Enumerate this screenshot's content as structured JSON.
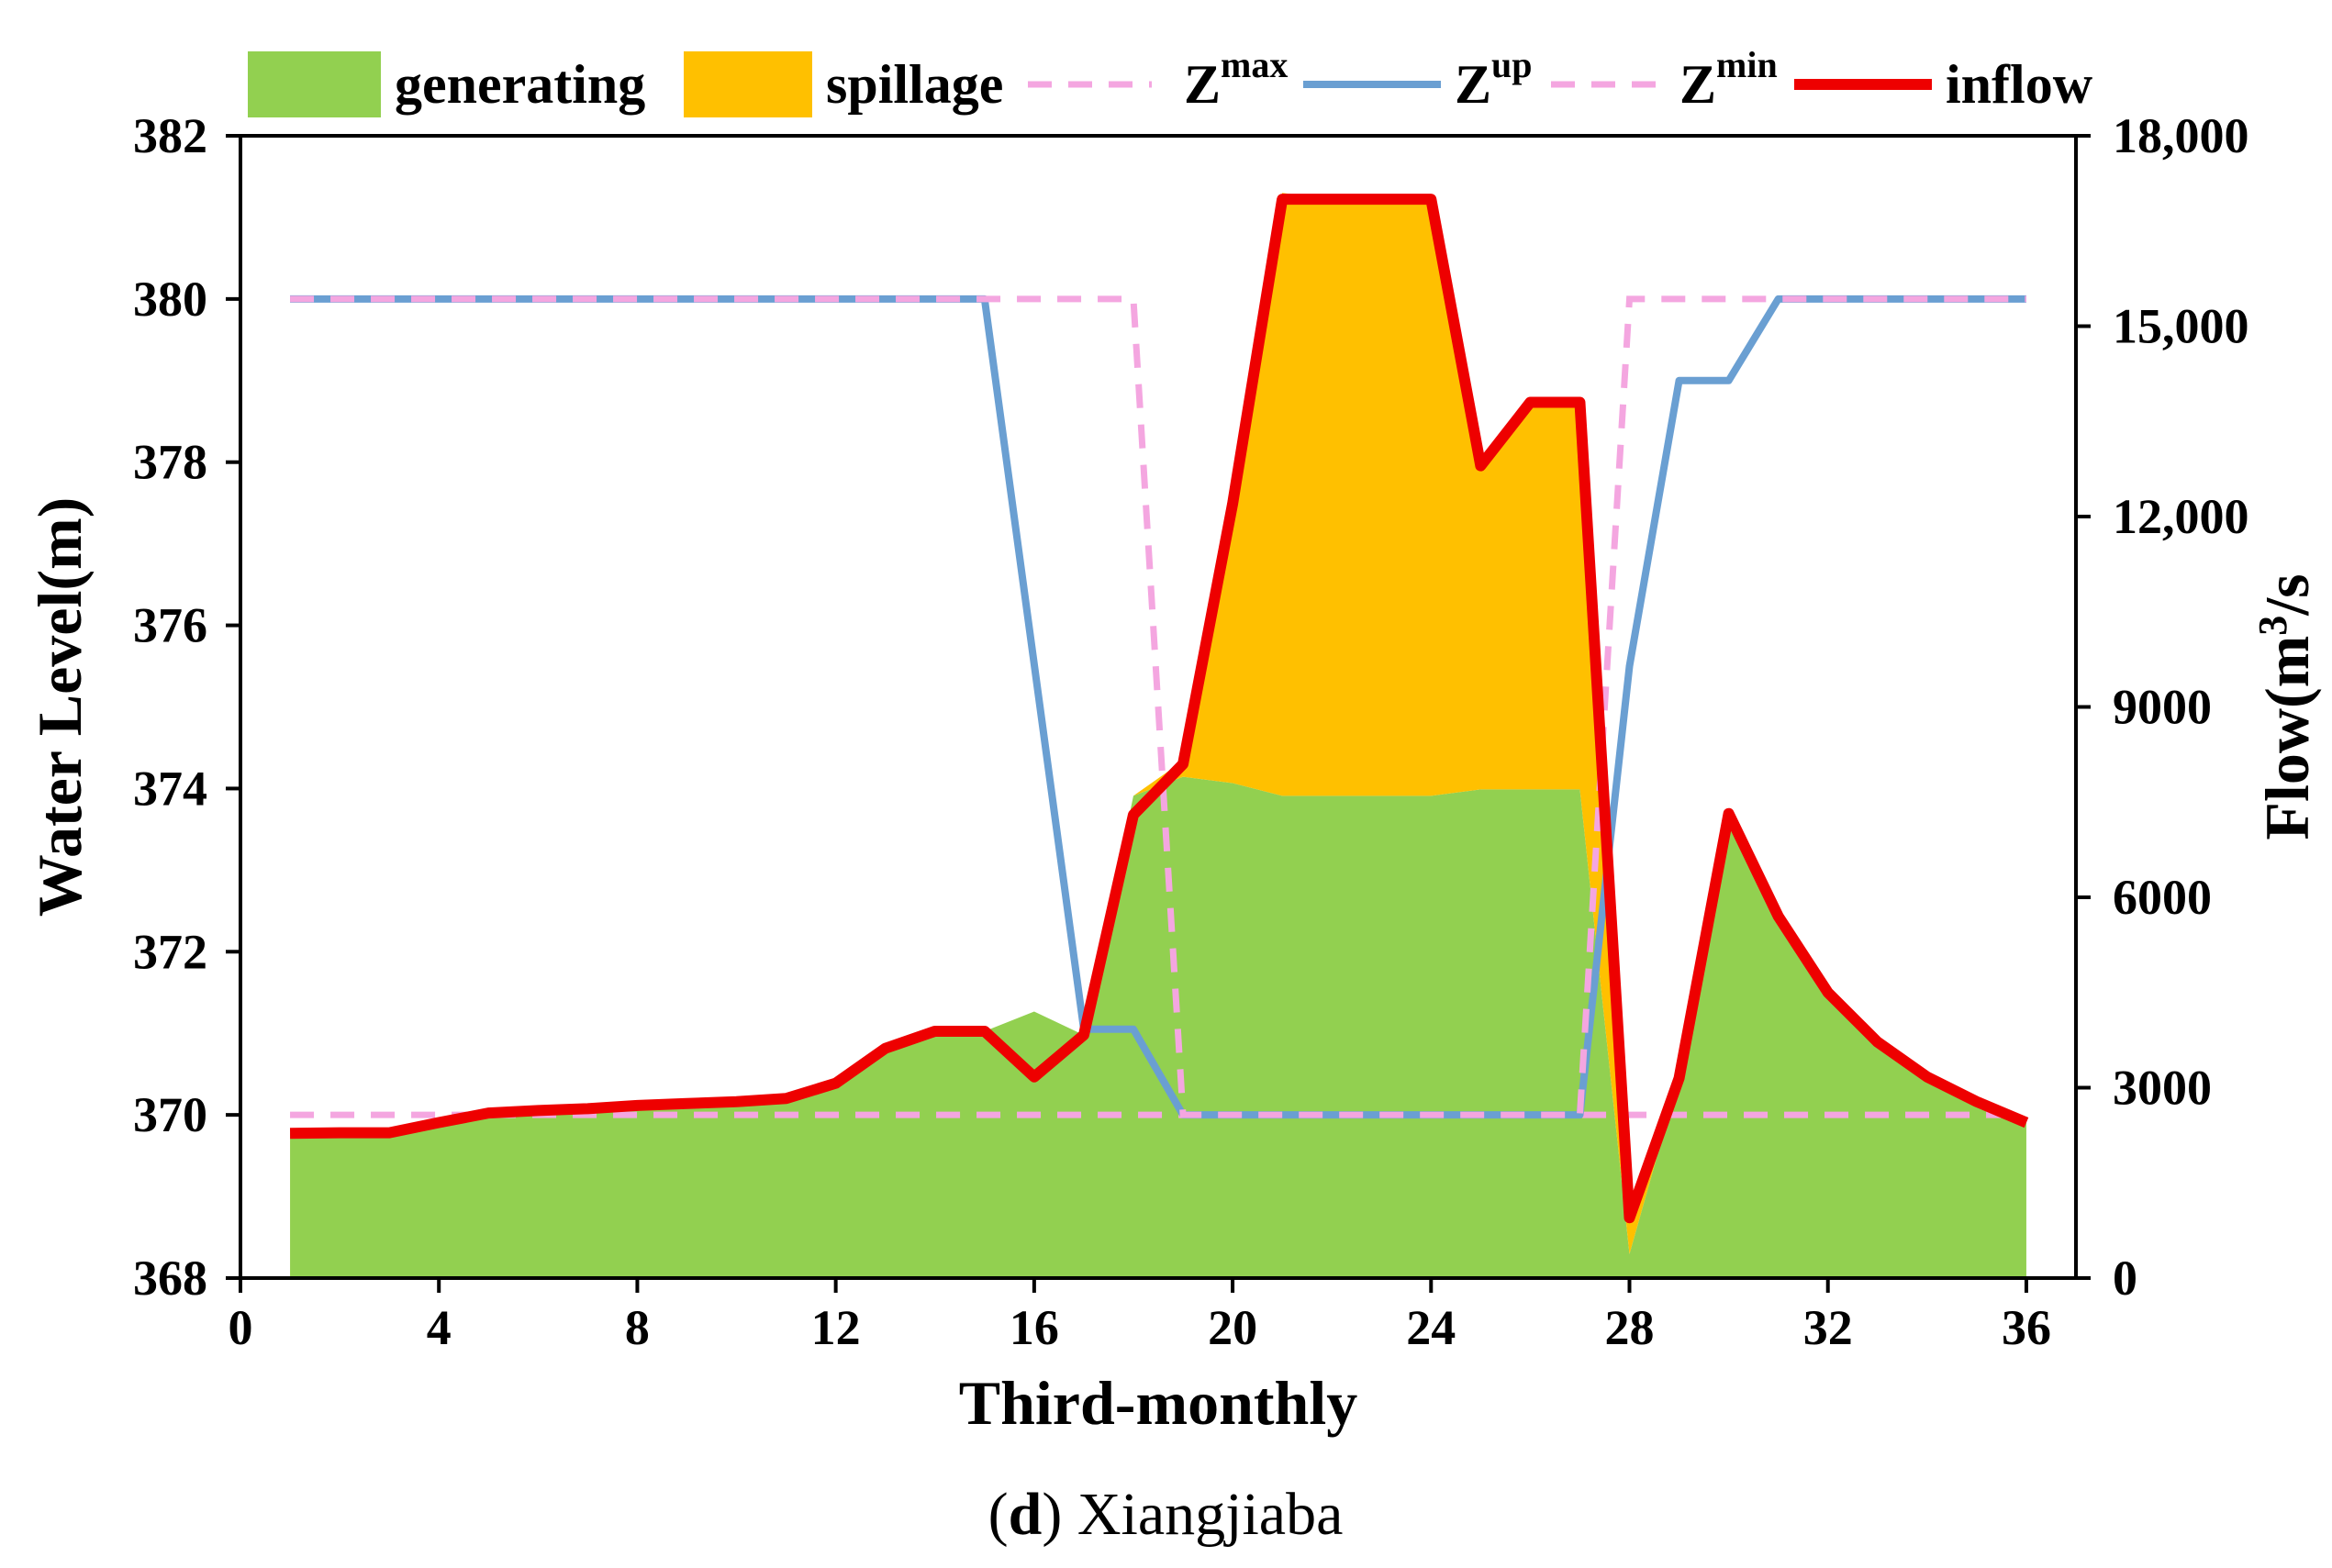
{
  "chart_data": {
    "type": "area",
    "caption": {
      "letter": "d",
      "name": "Xiangjiaba"
    },
    "xlabel": "Third-monthly",
    "ylabel_left": "Water Level(m)",
    "ylabel_right": {
      "prefix": "Flow(m",
      "superscript": "3",
      "suffix": "/s"
    },
    "xlim": [
      0,
      37
    ],
    "ylim_left": [
      368,
      382
    ],
    "ylim_right": [
      0,
      18000
    ],
    "x_ticks": [
      0,
      4,
      8,
      12,
      16,
      20,
      24,
      28,
      32,
      36
    ],
    "y_left_ticks": [
      368,
      370,
      372,
      374,
      376,
      378,
      380,
      382
    ],
    "y_right_ticks": [
      {
        "value": 0,
        "label": "0"
      },
      {
        "value": 3000,
        "label": "3000"
      },
      {
        "value": 6000,
        "label": "6000"
      },
      {
        "value": 9000,
        "label": "9000"
      },
      {
        "value": 12000,
        "label": "12,000"
      },
      {
        "value": 15000,
        "label": "15,000"
      },
      {
        "value": 18000,
        "label": "18,000"
      }
    ],
    "legend": [
      {
        "key": "generating",
        "label": "generating",
        "marker": "box"
      },
      {
        "key": "spillage",
        "label": "spillage",
        "marker": "box"
      },
      {
        "key": "zmax",
        "label": "Z",
        "sup": "max",
        "marker": "dash"
      },
      {
        "key": "zup",
        "label": "Z",
        "sup": "up",
        "marker": "line"
      },
      {
        "key": "zmin",
        "label": "Z",
        "sup": "min",
        "marker": "dash"
      },
      {
        "key": "inflow",
        "label": "inflow",
        "marker": "line"
      }
    ],
    "colors": {
      "generating": "#92d050",
      "spillage": "#ffc000",
      "zmax": "#f4a6e0",
      "zmin": "#f4a6e0",
      "zup": "#6a9fd2",
      "inflow": "#ee0000"
    },
    "x": [
      1,
      2,
      3,
      4,
      5,
      6,
      7,
      8,
      9,
      10,
      11,
      12,
      13,
      14,
      15,
      16,
      17,
      18,
      19,
      20,
      21,
      22,
      23,
      24,
      25,
      26,
      27,
      28,
      29,
      30,
      31,
      32,
      33,
      34,
      35,
      36
    ],
    "series": [
      {
        "name": "generating",
        "axis": "right",
        "values": [
          2280,
          2290,
          2290,
          2450,
          2600,
          2640,
          2670,
          2720,
          2750,
          2780,
          2830,
          3070,
          3620,
          3890,
          3890,
          4200,
          3830,
          7600,
          7900,
          7800,
          7600,
          7600,
          7600,
          7600,
          7700,
          7700,
          7700,
          380,
          3150,
          7320,
          5700,
          4500,
          3720,
          3170,
          2780,
          2450
        ]
      },
      {
        "name": "spillage",
        "axis": "right",
        "values": [
          0,
          0,
          0,
          0,
          0,
          0,
          0,
          0,
          0,
          0,
          0,
          0,
          0,
          0,
          0,
          0,
          0,
          0,
          250,
          4400,
          9500,
          9400,
          9400,
          9400,
          5100,
          6100,
          6100,
          570,
          0,
          0,
          0,
          0,
          0,
          0,
          0,
          0
        ]
      },
      {
        "name": "inflow",
        "axis": "right",
        "values": [
          2280,
          2290,
          2290,
          2450,
          2600,
          2640,
          2670,
          2720,
          2750,
          2780,
          2830,
          3070,
          3620,
          3890,
          3890,
          3170,
          3830,
          7300,
          8100,
          12200,
          17000,
          17000,
          17000,
          17000,
          12800,
          13800,
          13800,
          950,
          3150,
          7320,
          5700,
          4500,
          3720,
          3170,
          2780,
          2450
        ]
      },
      {
        "name": "zup",
        "axis": "left",
        "x": [
          1,
          15,
          17,
          18,
          19,
          20,
          21,
          22,
          23,
          24,
          25,
          26,
          27,
          28,
          29,
          30,
          31,
          32,
          33,
          34,
          35,
          36
        ],
        "values": [
          380,
          380,
          371.05,
          371.05,
          370,
          370,
          370,
          370,
          370,
          370,
          370,
          370,
          370,
          375.5,
          379,
          379,
          380,
          380,
          380,
          380,
          380,
          380
        ]
      },
      {
        "name": "zmax",
        "axis": "left",
        "x": [
          1,
          18,
          19,
          27,
          28,
          36
        ],
        "values": [
          380,
          380,
          370,
          370,
          380,
          380
        ]
      },
      {
        "name": "zmin",
        "axis": "left",
        "x": [
          1,
          36
        ],
        "values": [
          370,
          370
        ]
      }
    ]
  }
}
